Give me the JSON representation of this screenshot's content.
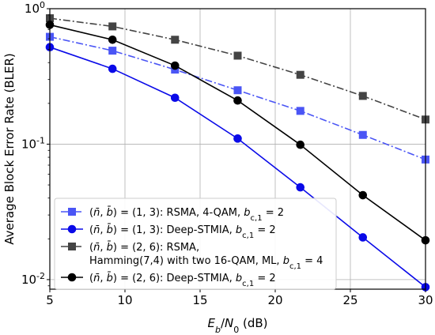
{
  "chart_data": {
    "type": "line",
    "xlabel": "E_b/N_0 (dB)",
    "ylabel": "Average Block Error Rate (BLER)",
    "xlim": [
      5,
      30
    ],
    "ylim": [
      0.0085,
      1
    ],
    "yscale": "log",
    "grid": true,
    "legend_position": "bottom-left",
    "x_ticks": [
      5,
      10,
      15,
      20,
      25,
      30
    ],
    "x_tick_labels": [
      "5",
      "10",
      "15",
      "20",
      "25",
      "30"
    ],
    "y_ticks": [
      1,
      0.1,
      0.01
    ],
    "y_tick_labels": [
      "10^0",
      "10^-1",
      "10^-2"
    ],
    "x": [
      5,
      9.17,
      13.33,
      17.5,
      21.67,
      25.83,
      30
    ],
    "series": [
      {
        "name": "(n̄, b̄) = (1, 3): RSMA, 4-QAM, b_c,1 = 2",
        "legend_lines": [
          "(n̄, b̄) = (1, 3): RSMA, 4-QAM, b_c,1 = 2"
        ],
        "color": "#4a55f5",
        "line_style": "dash-dot",
        "marker": "square",
        "values": [
          0.62,
          0.49,
          0.355,
          0.25,
          0.176,
          0.117,
          0.077
        ]
      },
      {
        "name": "(n̄, b̄) = (1, 3): Deep-STMIA, b_c,1 = 2",
        "legend_lines": [
          "(n̄, b̄) = (1, 3): Deep-STMIA, b_c,1 = 2"
        ],
        "color": "#0a0ae8",
        "line_style": "solid",
        "marker": "circle",
        "values": [
          0.52,
          0.36,
          0.22,
          0.11,
          0.048,
          0.0205,
          0.0088
        ]
      },
      {
        "name": "(n̄, b̄) = (2, 6): RSMA, Hamming(7,4) with two 16-QAM, ML, b_c,1 = 4",
        "legend_lines": [
          "(n̄, b̄) = (2, 6): RSMA,",
          "Hamming(7,4) with two 16-QAM, ML, b_c,1 = 4"
        ],
        "color": "#444444",
        "line_style": "dash-dot",
        "marker": "square",
        "values": [
          0.85,
          0.74,
          0.59,
          0.45,
          0.325,
          0.227,
          0.152
        ]
      },
      {
        "name": "(n̄, b̄) = (2, 6): Deep-STMIA, b_c,1 = 2",
        "legend_lines": [
          "(n̄, b̄) = (2, 6): Deep-STMIA, b_c,1 = 2"
        ],
        "color": "#000000",
        "line_style": "solid",
        "marker": "circle",
        "values": [
          0.76,
          0.59,
          0.38,
          0.21,
          0.099,
          0.042,
          0.0195
        ]
      }
    ]
  }
}
